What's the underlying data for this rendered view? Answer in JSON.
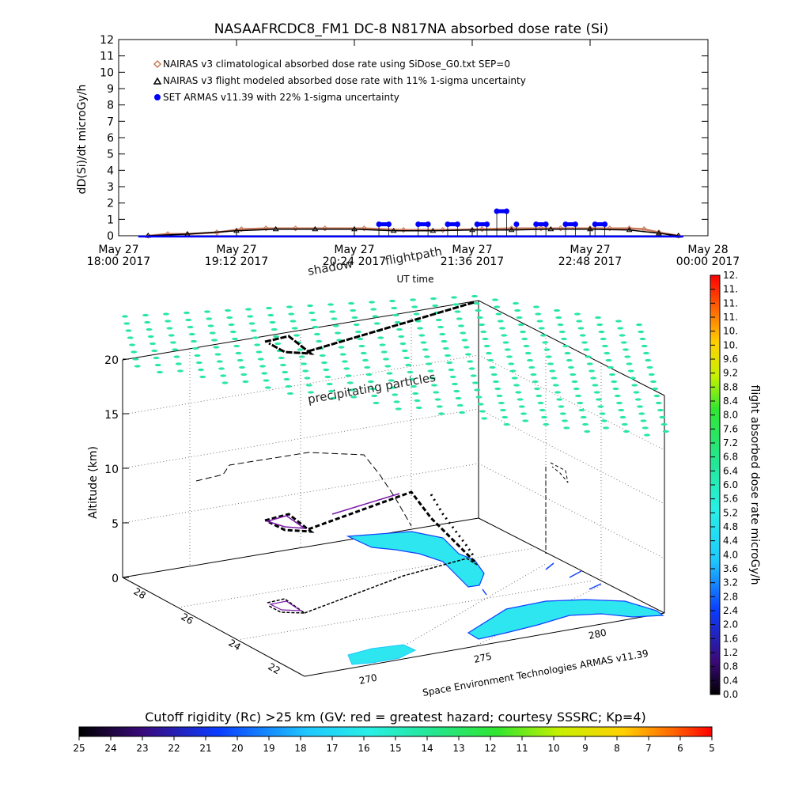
{
  "chart_data": [
    {
      "type": "line",
      "title": "NASAAFRCDC8_FM1 DC-8    N817NA absorbed dose rate (Si)",
      "xlabel": "UT time",
      "ylabel": "dD(Si)/dt microGy/h",
      "ylim": [
        0,
        12
      ],
      "yticks": [
        "0",
        "1",
        "2",
        "3",
        "4",
        "5",
        "6",
        "7",
        "8",
        "9",
        "10",
        "11",
        "12"
      ],
      "xlim_hours": [
        18.0,
        24.0
      ],
      "xticks": [
        {
          "hour": 18.0,
          "l1": "May 27",
          "l2": "18:00 2017"
        },
        {
          "hour": 19.2,
          "l1": "May 27",
          "l2": "19:12 2017"
        },
        {
          "hour": 20.4,
          "l1": "May 27",
          "l2": "20:24 2017"
        },
        {
          "hour": 21.6,
          "l1": "May 27",
          "l2": "21:36 2017"
        },
        {
          "hour": 22.8,
          "l1": "May 27",
          "l2": "22:48 2017"
        },
        {
          "hour": 24.0,
          "l1": "May 28",
          "l2": "00:00 2017"
        }
      ],
      "legend": [
        {
          "label": "NAIRAS v3 climatological absorbed dose rate using SiDose_G0.txt SEP=0",
          "color": "#c87858",
          "marker": "diamond"
        },
        {
          "label": "NAIRAS v3 flight modeled absorbed dose rate with 11% 1-sigma uncertainty",
          "color": "#000000",
          "marker": "triangle"
        },
        {
          "label": "SET ARMAS v11.39 with 22% 1-sigma uncertainty",
          "color": "#0000ff",
          "marker": "circle"
        }
      ],
      "legend_position": "top-left",
      "series": [
        {
          "name": "NAIRAS v3 climatological absorbed dose rate using SiDose_G0.txt SEP=0",
          "x": [
            18.3,
            18.5,
            18.7,
            19.0,
            19.25,
            19.5,
            19.8,
            20.1,
            20.5,
            20.9,
            21.3,
            21.7,
            22.0,
            22.3,
            22.5,
            22.8,
            23.0,
            23.2,
            23.35,
            23.5,
            23.7
          ],
          "y": [
            0.0,
            0.1,
            0.1,
            0.2,
            0.4,
            0.45,
            0.45,
            0.45,
            0.45,
            0.35,
            0.35,
            0.4,
            0.45,
            0.45,
            0.45,
            0.45,
            0.45,
            0.45,
            0.4,
            0.2,
            0.0
          ]
        },
        {
          "name": "NAIRAS v3 flight modeled absorbed dose rate with 11% 1-sigma uncertainty",
          "x": [
            18.3,
            18.7,
            19.2,
            19.6,
            20.0,
            20.4,
            20.8,
            21.2,
            21.6,
            22.0,
            22.4,
            22.8,
            23.2,
            23.5,
            23.7
          ],
          "y": [
            0.0,
            0.1,
            0.3,
            0.4,
            0.4,
            0.4,
            0.3,
            0.3,
            0.35,
            0.35,
            0.4,
            0.4,
            0.35,
            0.15,
            0.0
          ]
        },
        {
          "name": "SET ARMAS v11.39 with 22% 1-sigma uncertainty",
          "x": [
            20.65,
            20.75,
            21.05,
            21.15,
            21.35,
            21.45,
            21.65,
            21.75,
            21.85,
            21.95,
            22.05,
            22.25,
            22.35,
            22.55,
            22.65,
            22.85,
            22.95
          ],
          "y": [
            0.7,
            0.7,
            0.7,
            0.7,
            0.7,
            0.7,
            0.7,
            0.7,
            1.5,
            1.5,
            0.7,
            0.7,
            0.7,
            0.7,
            0.7,
            0.7,
            0.7
          ]
        }
      ]
    },
    {
      "type": "scatter",
      "subtype": "3d-flight-path",
      "zlabel": "Altitude (km)",
      "zticks": [
        "0",
        "5",
        "10",
        "15",
        "20"
      ],
      "lat_ticks": [
        "22",
        "24",
        "26",
        "28"
      ],
      "lon_ticks": [
        "270",
        "275",
        "280"
      ],
      "annotations": [
        "shadow",
        "flightpath",
        "precipitating particles"
      ],
      "credit": "Space Environment Technologies ARMAS v11.39",
      "colorbar": {
        "label": "flight absorbed dose rate microGy/h",
        "ticks": [
          "0.0",
          "0.4",
          "0.8",
          "1.2",
          "1.6",
          "2.0",
          "2.4",
          "2.8",
          "3.2",
          "3.6",
          "4.0",
          "4.4",
          "4.8",
          "5.2",
          "5.6",
          "6.0",
          "6.4",
          "6.8",
          "7.2",
          "7.6",
          "8.0",
          "8.4",
          "8.8",
          "9.2",
          "9.6",
          "10.",
          "10.",
          "11.",
          "11.",
          "11.",
          "12."
        ]
      },
      "cutoff_bar": {
        "title": "Cutoff rigidity (Rc) >25 km (GV: red = greatest hazard; courtesy SSSRC; Kp=4)",
        "ticks": [
          "25",
          "24",
          "23",
          "22",
          "21",
          "20",
          "19",
          "18",
          "17",
          "16",
          "15",
          "14",
          "13",
          "12",
          "11",
          "10",
          "9",
          "8",
          "7",
          "6",
          "5"
        ]
      },
      "colors": {
        "particles": "#29e6a8",
        "land": "#2ee6f0",
        "coast": "#1040ff",
        "path": "#000000",
        "path_alt": "#7a1aa8"
      }
    }
  ]
}
